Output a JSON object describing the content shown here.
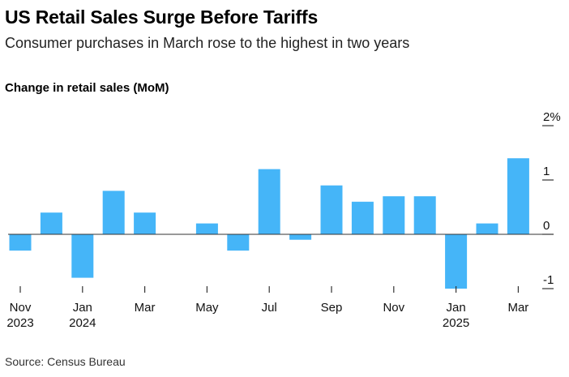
{
  "title": "US Retail Sales Surge Before Tariffs",
  "subtitle": "Consumer purchases in March rose to the highest in two years",
  "chart_label": "Change in retail sales (MoM)",
  "source": "Source: Census Bureau",
  "colors": {
    "bar": "#45b5f8",
    "axis": "#333333"
  },
  "chart_data": {
    "type": "bar",
    "title": "US Retail Sales Surge Before Tariffs",
    "ylabel": "Change in retail sales (MoM)",
    "xlabel": "",
    "ylim": [
      -1,
      2
    ],
    "y_ticks": [
      {
        "value": 2,
        "label": "2%"
      },
      {
        "value": 1,
        "label": "1"
      },
      {
        "value": 0,
        "label": "0"
      },
      {
        "value": -1,
        "label": "-1"
      }
    ],
    "categories": [
      "Nov 2023",
      "Dec 2023",
      "Jan 2024",
      "Feb 2024",
      "Mar 2024",
      "Apr 2024",
      "May 2024",
      "Jun 2024",
      "Jul 2024",
      "Aug 2024",
      "Sep 2024",
      "Oct 2024",
      "Nov 2024",
      "Dec 2024",
      "Jan 2025",
      "Feb 2025",
      "Mar 2025"
    ],
    "values": [
      -0.3,
      0.4,
      -0.8,
      0.8,
      0.4,
      0.0,
      0.2,
      -0.3,
      1.2,
      -0.1,
      0.9,
      0.6,
      0.7,
      0.7,
      -1.0,
      0.2,
      1.4
    ],
    "x_tick_labels": [
      {
        "index": 0,
        "month": "Nov",
        "year": "2023"
      },
      {
        "index": 2,
        "month": "Jan",
        "year": "2024"
      },
      {
        "index": 4,
        "month": "Mar",
        "year": ""
      },
      {
        "index": 6,
        "month": "May",
        "year": ""
      },
      {
        "index": 8,
        "month": "Jul",
        "year": ""
      },
      {
        "index": 10,
        "month": "Sep",
        "year": ""
      },
      {
        "index": 12,
        "month": "Nov",
        "year": ""
      },
      {
        "index": 14,
        "month": "Jan",
        "year": "2025"
      },
      {
        "index": 16,
        "month": "Mar",
        "year": ""
      }
    ]
  }
}
